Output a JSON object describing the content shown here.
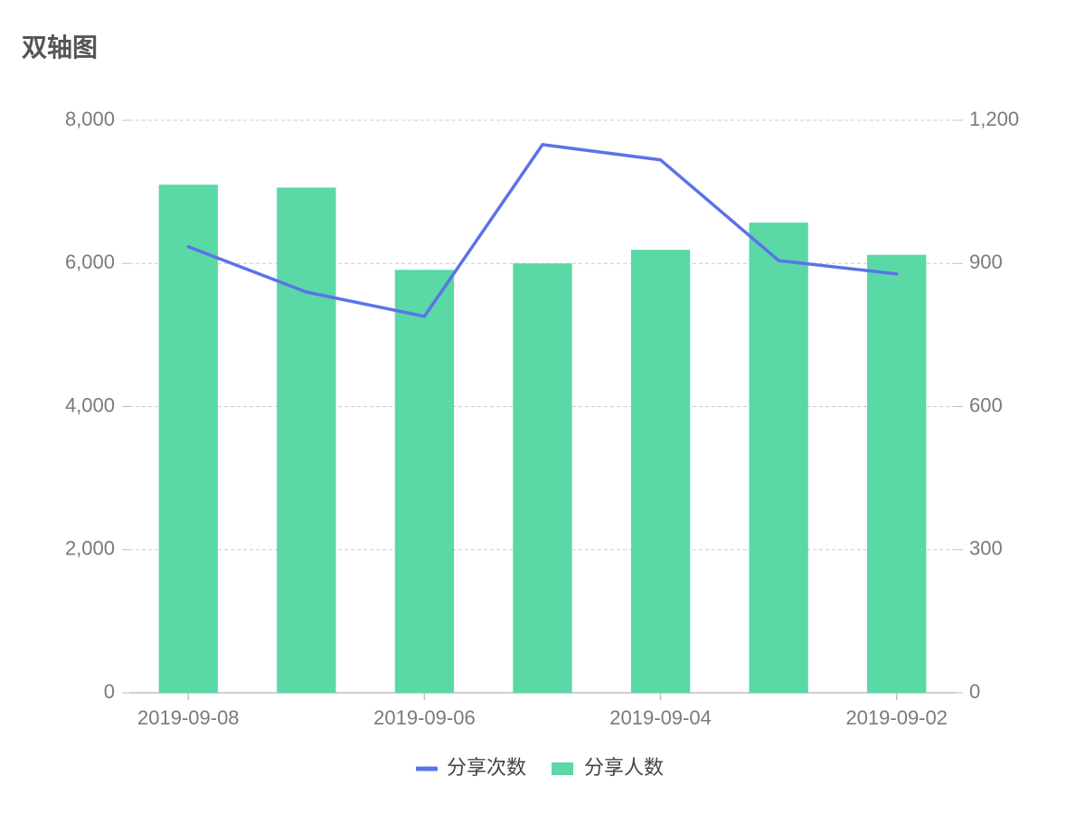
{
  "chart_data": {
    "type": "bar",
    "title": "双轴图",
    "categories": [
      "2019-09-08",
      "",
      "2019-09-06",
      "",
      "2019-09-04",
      "",
      "2019-09-02"
    ],
    "series": [
      {
        "name": "分享次数",
        "type": "line",
        "axis": "right",
        "color": "#5B73E8",
        "values": [
          935,
          840,
          789,
          1149,
          1117,
          906,
          878
        ]
      },
      {
        "name": "分享人数",
        "type": "bar",
        "axis": "left",
        "color": "#5AD8A6",
        "values": [
          7100,
          7060,
          5910,
          6000,
          6190,
          6570,
          6120
        ]
      }
    ],
    "y_left": {
      "lim": [
        0,
        8000
      ],
      "ticks": [
        {
          "value": 0,
          "label": "0"
        },
        {
          "value": 2000,
          "label": "2,000"
        },
        {
          "value": 4000,
          "label": "4,000"
        },
        {
          "value": 6000,
          "label": "6,000"
        },
        {
          "value": 8000,
          "label": "8,000"
        }
      ]
    },
    "y_right": {
      "lim": [
        0,
        1200
      ],
      "ticks": [
        {
          "value": 0,
          "label": "0"
        },
        {
          "value": 300,
          "label": "300"
        },
        {
          "value": 600,
          "label": "600"
        },
        {
          "value": 900,
          "label": "900"
        },
        {
          "value": 1200,
          "label": "1,200"
        }
      ]
    },
    "grid": true,
    "legend_position": "bottom",
    "axis_color": "#BFBFBF",
    "grid_color": "#CCCCCC"
  }
}
